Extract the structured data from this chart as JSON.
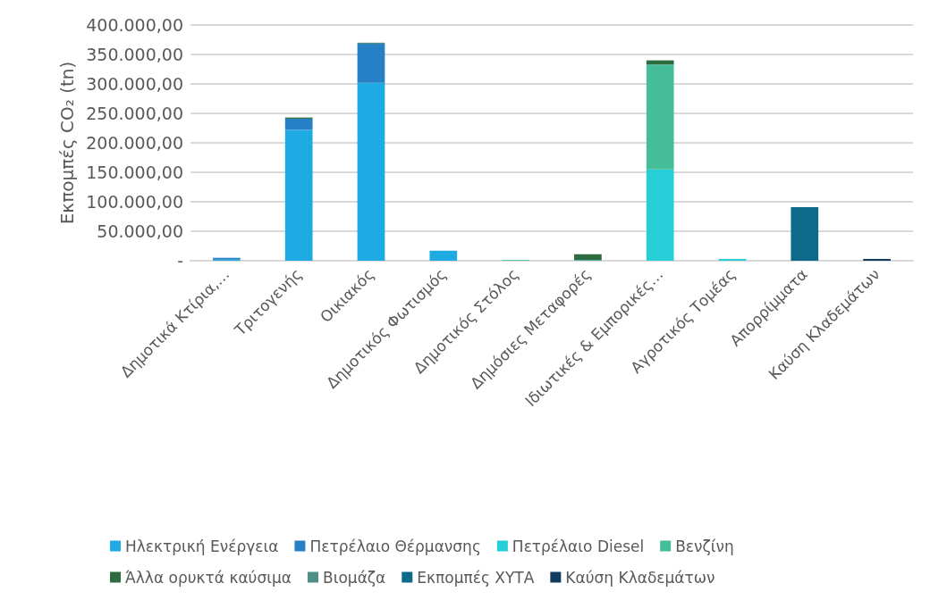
{
  "chart_data": {
    "type": "bar",
    "stacked": true,
    "ylabel": "Εκπομπές CO₂ (tn)",
    "categories": [
      "Δημοτικά Κτίρια,…",
      "Τριτογενής",
      "Οικιακός",
      "Δημοτικός Φωτισμός",
      "Δημοτικός Στόλος",
      "Δημόσιες Μεταφορές",
      "Ιδιωτικές & Εμπορικές…",
      "Αγροτικός Τομέας",
      "Απορρίμματα",
      "Καύση Κλαδεμάτων"
    ],
    "series": [
      {
        "name": "Ηλεκτρική Ενέργεια",
        "color": "#1eabe3",
        "values": [
          2000,
          222000,
          302000,
          17000,
          null,
          null,
          null,
          null,
          null,
          null
        ]
      },
      {
        "name": "Πετρέλαιο Θέρμανσης",
        "color": "#2680c6",
        "values": [
          3000,
          19000,
          66000,
          null,
          null,
          null,
          null,
          null,
          null,
          null
        ]
      },
      {
        "name": "Πετρέλαιο Diesel",
        "color": "#26cfd8",
        "values": [
          null,
          null,
          null,
          null,
          500,
          1000,
          155000,
          3000,
          null,
          null
        ]
      },
      {
        "name": "Βενζίνη",
        "color": "#44bd98",
        "values": [
          null,
          null,
          null,
          null,
          1000,
          null,
          178000,
          null,
          null,
          null
        ]
      },
      {
        "name": "Άλλα ορυκτά καύσιμα",
        "color": "#2e6b3e",
        "values": [
          null,
          2000,
          null,
          null,
          null,
          10000,
          7000,
          null,
          null,
          null
        ]
      },
      {
        "name": "Βιομάζα",
        "color": "#4f8f86",
        "values": [
          null,
          null,
          2000,
          null,
          null,
          null,
          null,
          null,
          null,
          null
        ]
      },
      {
        "name": "Εκπομπές ΧΥΤΑ",
        "color": "#0e6a8a",
        "values": [
          null,
          null,
          null,
          null,
          null,
          null,
          null,
          null,
          91000,
          null
        ]
      },
      {
        "name": "Καύση Κλαδεμάτων",
        "color": "#123c5e",
        "values": [
          null,
          null,
          null,
          null,
          null,
          null,
          null,
          null,
          null,
          3000
        ]
      }
    ],
    "ylim": [
      0,
      400000
    ],
    "yticks": [
      {
        "value": 0,
        "label": "-"
      },
      {
        "value": 50000,
        "label": "50.000,00"
      },
      {
        "value": 100000,
        "label": "100.000,00"
      },
      {
        "value": 150000,
        "label": "150.000,00"
      },
      {
        "value": 200000,
        "label": "200.000,00"
      },
      {
        "value": 250000,
        "label": "250.000,00"
      },
      {
        "value": 300000,
        "label": "300.000,00"
      },
      {
        "value": 350000,
        "label": "350.000,00"
      },
      {
        "value": 400000,
        "label": "400.000,00"
      }
    ],
    "grid": "y",
    "legend": "bottom"
  }
}
